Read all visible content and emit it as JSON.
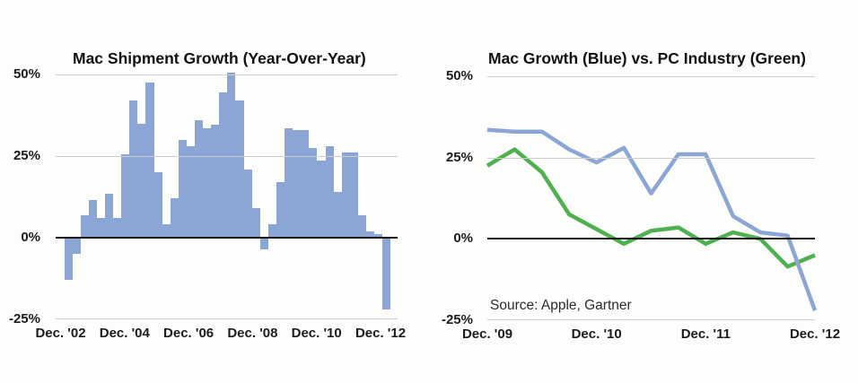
{
  "page": {
    "background": "#fdfdfb"
  },
  "colors": {
    "bar_blue": "#8ba6d5",
    "line_blue": "#8ba6d5",
    "line_green": "#4fb04f",
    "gridline": "#cdcdcd",
    "zero_line": "#161616",
    "text": "#1c1c1c"
  },
  "chart_data": [
    {
      "type": "bar",
      "title": "Mac Shipment Growth (Year-Over-Year)",
      "ylabel": "",
      "xlabel": "",
      "ylim": [
        -25,
        50
      ],
      "grid": true,
      "y_tick_labels": [
        "50%",
        "25%",
        "0%",
        "-25%"
      ],
      "y_tick_values": [
        50,
        25,
        0,
        -25
      ],
      "x_tick_labels": [
        "Dec. '02",
        "Dec. '04",
        "Dec. '06",
        "Dec. '08",
        "Dec. '10",
        "Dec. '12"
      ],
      "bar_color": "#8ba6d5",
      "categories": [
        "Mar. '03",
        "Jun. '03",
        "Sep. '03",
        "Dec. '03",
        "Mar. '04",
        "Jun. '04",
        "Sep. '04",
        "Dec. '04",
        "Mar. '05",
        "Jun. '05",
        "Sep. '05",
        "Dec. '05",
        "Mar. '06",
        "Jun. '06",
        "Sep. '06",
        "Dec. '06",
        "Mar. '07",
        "Jun. '07",
        "Sep. '07",
        "Dec. '07",
        "Mar. '08",
        "Jun. '08",
        "Sep. '08",
        "Dec. '08",
        "Mar. '09",
        "Jun. '09",
        "Sep. '09",
        "Dec. '09",
        "Mar. '10",
        "Jun. '10",
        "Sep. '10",
        "Dec. '10",
        "Mar. '11",
        "Jun. '11",
        "Sep. '11",
        "Dec. '11",
        "Mar. '12",
        "Jun. '12",
        "Sep. '12",
        "Dec. '12"
      ],
      "values": [
        -13,
        -5,
        7,
        11.5,
        6,
        13.5,
        6,
        25.5,
        42,
        35,
        47.5,
        20,
        4,
        12,
        30,
        28,
        36,
        33.5,
        34.5,
        44.5,
        50.5,
        42,
        21,
        9,
        -3.5,
        4,
        17,
        33.5,
        33,
        33,
        27.5,
        23.5,
        28,
        14,
        26,
        26,
        7,
        2,
        1,
        -22
      ]
    },
    {
      "type": "line",
      "title": "Mac Growth (Blue) vs. PC Industry (Green)",
      "ylabel": "",
      "xlabel": "",
      "ylim": [
        -25,
        50
      ],
      "grid": true,
      "legend_position": "in-title",
      "source_note": "Source: Apple, Gartner",
      "y_tick_labels": [
        "50%",
        "25%",
        "0%",
        "-25%"
      ],
      "y_tick_values": [
        50,
        25,
        0,
        -25
      ],
      "x_tick_labels": [
        "Dec. '09",
        "Dec. '10",
        "Dec. '11",
        "Dec. '12"
      ],
      "x": [
        "Dec. '09",
        "Mar. '10",
        "Jun. '10",
        "Sep. '10",
        "Dec. '10",
        "Mar. '11",
        "Jun. '11",
        "Sep. '11",
        "Dec. '11",
        "Mar. '12",
        "Jun. '12",
        "Sep. '12",
        "Dec. '12"
      ],
      "series": [
        {
          "name": "PC Industry",
          "color": "#4fb04f",
          "values": [
            22.5,
            27.5,
            20.5,
            7.5,
            3,
            -1.5,
            2.5,
            3.5,
            -1.5,
            2,
            0,
            -8.5,
            -5
          ]
        },
        {
          "name": "Mac Growth",
          "color": "#8ba6d5",
          "values": [
            33.5,
            33,
            33,
            27.5,
            23.5,
            28,
            14,
            26,
            26,
            7,
            2,
            1,
            -22
          ]
        }
      ]
    }
  ]
}
